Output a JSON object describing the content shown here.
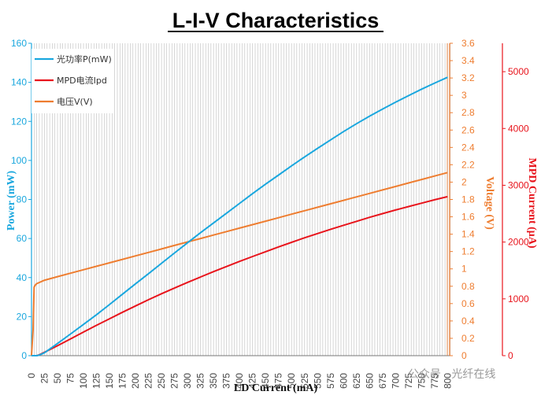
{
  "watermark": "公众号 · 光纤在线",
  "colors": {
    "power": "#1aa7de",
    "mpd": "#e8141c",
    "voltage": "#ee7d30",
    "grid": "#bdbdbd",
    "title": "#111111"
  },
  "chart_data": {
    "type": "line",
    "title": "L-I-V Characteristics",
    "xlabel": "LD Current (mA)",
    "ylabel_left": "Power (mW)",
    "ylabel_right_inner": "Voltage (V)",
    "ylabel_right_outer": "MPD Current (μA)",
    "xlim": [
      0,
      810
    ],
    "x_ticks": [
      "0",
      "25",
      "50",
      "75",
      "100",
      "125",
      "150",
      "175",
      "200",
      "225",
      "250",
      "275",
      "300",
      "325",
      "350",
      "375",
      "400",
      "425",
      "450",
      "475",
      "500",
      "525",
      "550",
      "575",
      "600",
      "625",
      "650",
      "675",
      "700",
      "725",
      "750",
      "775",
      "800"
    ],
    "y_left": {
      "ylim": [
        0,
        160
      ],
      "ticks": [
        "0",
        "20",
        "40",
        "60",
        "80",
        "100",
        "120",
        "140",
        "160"
      ]
    },
    "y_right_inner": {
      "ylim": [
        0,
        3.6
      ],
      "ticks": [
        "0",
        "0.2",
        "0.4",
        "0.6",
        "0.8",
        "1",
        "1.2",
        "1.4",
        "1.6",
        "1.8",
        "2",
        "2.2",
        "2.4",
        "2.6",
        "2.8",
        "3",
        "3.2",
        "3.4",
        "3.6"
      ]
    },
    "y_right_outer": {
      "ylim": [
        0,
        5500
      ],
      "ticks": [
        "0",
        "1000",
        "2000",
        "3000",
        "4000",
        "5000"
      ]
    },
    "grid": "vertical",
    "legend_position": "top-left",
    "series": [
      {
        "name": "光功率P(mW)",
        "axis": "left",
        "x": [
          0,
          5,
          10,
          15,
          25,
          50,
          75,
          100,
          125,
          150,
          175,
          200,
          225,
          250,
          275,
          300,
          325,
          350,
          375,
          400,
          425,
          450,
          475,
          500,
          525,
          550,
          575,
          600,
          625,
          650,
          675,
          700,
          725,
          750,
          775,
          800
        ],
        "y": [
          0,
          0,
          0,
          0.3,
          1.5,
          6.2,
          11.1,
          16.0,
          21.0,
          26.2,
          31.5,
          36.8,
          42.0,
          47.3,
          52.6,
          57.8,
          63.0,
          68.0,
          73.0,
          78.0,
          83.0,
          87.8,
          92.5,
          97.2,
          101.8,
          106.2,
          110.5,
          114.8,
          118.8,
          122.7,
          126.3,
          129.8,
          133.2,
          136.5,
          139.6,
          142.6
        ]
      },
      {
        "name": "MPD电流Ipd",
        "axis": "right_outer",
        "x": [
          0,
          5,
          10,
          15,
          25,
          50,
          75,
          100,
          125,
          150,
          175,
          200,
          225,
          250,
          275,
          300,
          325,
          350,
          375,
          400,
          425,
          450,
          475,
          500,
          525,
          550,
          575,
          600,
          625,
          650,
          675,
          700,
          725,
          750,
          775,
          800
        ],
        "y": [
          0,
          0,
          0,
          15,
          60,
          175,
          295,
          415,
          535,
          650,
          765,
          875,
          985,
          1090,
          1190,
          1290,
          1385,
          1480,
          1570,
          1660,
          1745,
          1830,
          1915,
          1995,
          2075,
          2150,
          2225,
          2295,
          2365,
          2435,
          2500,
          2565,
          2625,
          2685,
          2745,
          2800
        ]
      },
      {
        "name": "电压V(V)",
        "axis": "right_inner",
        "x": [
          0,
          3,
          5,
          8,
          10,
          25,
          50,
          75,
          100,
          125,
          150,
          175,
          200,
          225,
          250,
          275,
          300,
          325,
          350,
          375,
          400,
          425,
          450,
          475,
          500,
          525,
          550,
          575,
          600,
          625,
          650,
          675,
          700,
          725,
          750,
          775,
          800
        ],
        "y": [
          0,
          0.3,
          0.79,
          0.82,
          0.83,
          0.87,
          0.91,
          0.95,
          0.99,
          1.03,
          1.07,
          1.11,
          1.15,
          1.19,
          1.23,
          1.27,
          1.31,
          1.35,
          1.39,
          1.43,
          1.47,
          1.51,
          1.55,
          1.59,
          1.63,
          1.67,
          1.71,
          1.75,
          1.79,
          1.83,
          1.87,
          1.91,
          1.95,
          1.99,
          2.03,
          2.07,
          2.11
        ]
      }
    ]
  }
}
